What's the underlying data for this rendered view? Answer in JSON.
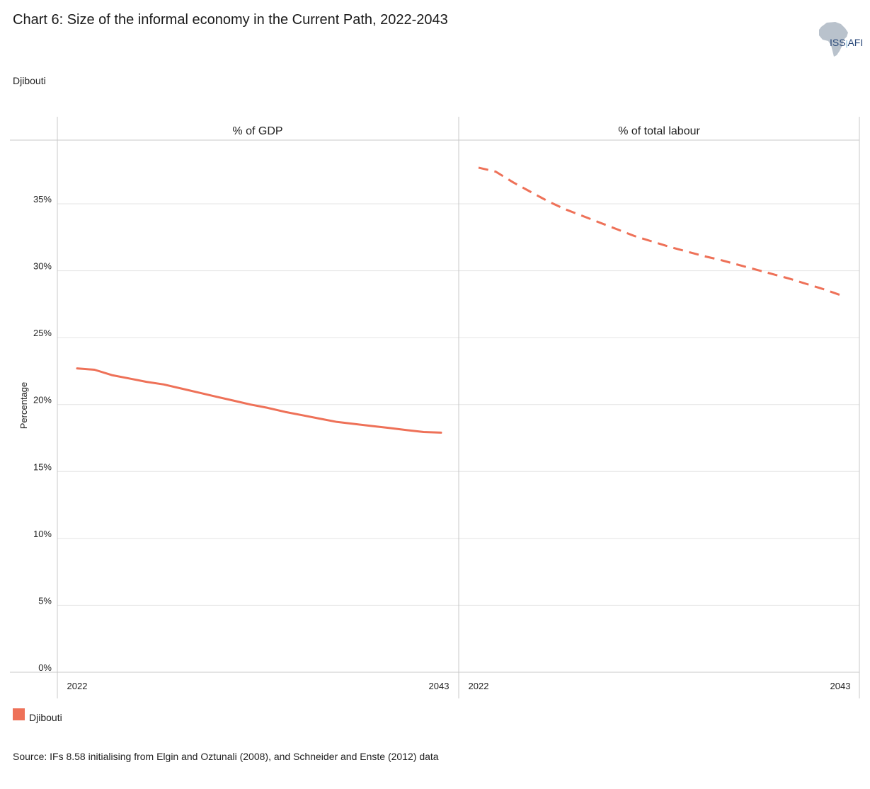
{
  "header": {
    "title": "Chart 6: Size of the informal economy in the Current Path, 2022-2043",
    "subtitle": "Djibouti"
  },
  "logo": {
    "text": "ISS",
    "suffix": "AFI"
  },
  "legend": {
    "label": "Djibouti",
    "color": "#ee7158"
  },
  "footer": {
    "source": "Source: IFs 8.58 initialising  from Elgin and Oztunali (2008), and Schneider and Enste (2012) data"
  },
  "chart_data": {
    "type": "line",
    "ylabel": "Percentage",
    "ylim": [
      0,
      40
    ],
    "y_ticks": [
      "0%",
      "5%",
      "10%",
      "15%",
      "20%",
      "25%",
      "30%",
      "35%"
    ],
    "y_tick_values": [
      0,
      5,
      10,
      15,
      20,
      25,
      30,
      35
    ],
    "grid": true,
    "legend_position": "bottom-left",
    "panels": [
      {
        "name": "% of GDP",
        "x_tick_labels": [
          "2022",
          "2043"
        ],
        "series": [
          {
            "name": "Djibouti",
            "style": "solid",
            "x": [
              2022,
              2023,
              2024,
              2025,
              2026,
              2027,
              2028,
              2029,
              2030,
              2031,
              2032,
              2033,
              2034,
              2035,
              2036,
              2037,
              2038,
              2039,
              2040,
              2041,
              2042,
              2043
            ],
            "y": [
              22.7,
              22.6,
              22.2,
              21.95,
              21.7,
              21.5,
              21.2,
              20.9,
              20.6,
              20.3,
              20.0,
              19.75,
              19.45,
              19.2,
              18.95,
              18.7,
              18.55,
              18.4,
              18.25,
              18.1,
              17.95,
              17.9
            ]
          }
        ]
      },
      {
        "name": "% of total labour",
        "x_tick_labels": [
          "2022",
          "2043"
        ],
        "series": [
          {
            "name": "Djibouti",
            "style": "dashed",
            "x": [
              2022,
              2023,
              2024,
              2025,
              2026,
              2027,
              2028,
              2029,
              2030,
              2031,
              2032,
              2033,
              2034,
              2035,
              2036,
              2037,
              2038,
              2039,
              2040,
              2041,
              2042,
              2043
            ],
            "y": [
              37.7,
              37.4,
              36.6,
              35.9,
              35.2,
              34.6,
              34.1,
              33.6,
              33.1,
              32.6,
              32.2,
              31.8,
              31.45,
              31.1,
              30.8,
              30.45,
              30.1,
              29.75,
              29.4,
              29.0,
              28.6,
              28.15
            ]
          }
        ]
      }
    ]
  }
}
